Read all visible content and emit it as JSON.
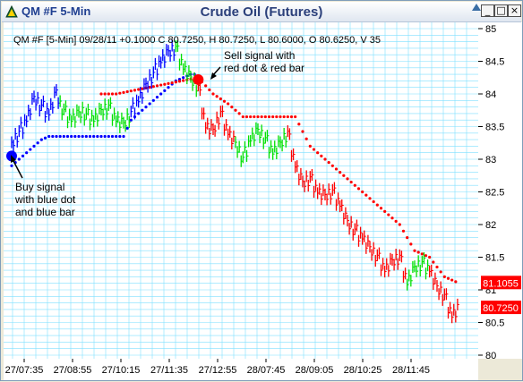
{
  "window": {
    "title": "QM #F 5-Min",
    "minimize_symbol": "_",
    "maximize_symbol": "□",
    "close_symbol": "×"
  },
  "chart_data": {
    "type": "bar",
    "title": "Crude Oil (Futures)",
    "info_line": "QM #F [5-Min] 09/28/11  +0.1000 C 80.7250, H 80.7250, L 80.6000, O 80.6250, V 35",
    "x_tick_labels": [
      "27/07:35",
      "27/08:55",
      "27/10:15",
      "27/11:35",
      "27/12:55",
      "28/07:45",
      "28/09:05",
      "28/10:25",
      "28/11:45"
    ],
    "y_ticks": [
      80,
      80.5,
      81,
      81.5,
      82,
      82.5,
      83,
      83.5,
      84,
      84.5,
      85
    ],
    "y_tick_labels": [
      "80",
      "80.5",
      "81",
      "81.5",
      "82",
      "82.5",
      "83",
      "83.5",
      "84",
      "84.5",
      "85"
    ],
    "ylim": [
      80,
      85.1
    ],
    "grid": true,
    "price_markers": [
      {
        "label": "81.1055",
        "value": 81.1055,
        "color": "#ff0000"
      },
      {
        "label": "80.7250",
        "value": 80.725,
        "color": "#ff0000"
      }
    ],
    "annotations": [
      {
        "id": "buy",
        "lines": [
          "Buy signal",
          "with blue dot",
          "and blue bar"
        ]
      },
      {
        "id": "sell",
        "lines": [
          "Sell signal with",
          "red dot & red bar"
        ]
      }
    ],
    "colors": {
      "blue": "#0000ff",
      "green": "#00e000",
      "red": "#ff0000",
      "grid": "#7fdfff",
      "background": "#ffffff"
    },
    "bar_segments": [
      {
        "color": "blue",
        "points": [
          [
            0,
            83.2
          ],
          [
            2,
            83.4
          ],
          [
            4,
            83.6
          ],
          [
            6,
            83.9
          ],
          [
            8,
            83.8
          ],
          [
            10,
            83.7
          ],
          [
            12,
            84.0
          ],
          [
            13,
            83.8
          ]
        ]
      },
      {
        "color": "green",
        "points": [
          [
            13,
            83.8
          ],
          [
            16,
            83.6
          ],
          [
            19,
            83.7
          ],
          [
            22,
            83.6
          ],
          [
            24,
            83.7
          ],
          [
            26,
            83.8
          ],
          [
            28,
            83.6
          ],
          [
            30,
            83.5
          ],
          [
            32,
            83.7
          ]
        ]
      },
      {
        "color": "blue",
        "points": [
          [
            32,
            83.7
          ],
          [
            34,
            83.9
          ],
          [
            36,
            84.1
          ],
          [
            38,
            84.3
          ],
          [
            40,
            84.5
          ],
          [
            42,
            84.6
          ],
          [
            44,
            84.7
          ]
        ]
      },
      {
        "color": "green",
        "points": [
          [
            44,
            84.7
          ],
          [
            46,
            84.4
          ],
          [
            48,
            84.2
          ],
          [
            50,
            84.1
          ]
        ]
      },
      {
        "color": "red",
        "points": [
          [
            50,
            84.1
          ],
          [
            52,
            83.5
          ],
          [
            54,
            83.4
          ],
          [
            56,
            83.7
          ],
          [
            58,
            83.4
          ],
          [
            60,
            83.2
          ]
        ]
      },
      {
        "color": "green",
        "points": [
          [
            60,
            83.2
          ],
          [
            62,
            83.0
          ],
          [
            64,
            83.3
          ],
          [
            66,
            83.4
          ],
          [
            68,
            83.3
          ],
          [
            70,
            83.1
          ],
          [
            72,
            83.2
          ],
          [
            74,
            83.4
          ]
        ]
      },
      {
        "color": "red",
        "points": [
          [
            74,
            83.4
          ],
          [
            76,
            82.9
          ],
          [
            78,
            82.6
          ],
          [
            80,
            82.7
          ],
          [
            82,
            82.5
          ],
          [
            84,
            82.4
          ],
          [
            86,
            82.5
          ],
          [
            88,
            82.3
          ],
          [
            90,
            82.0
          ],
          [
            92,
            81.9
          ],
          [
            94,
            81.8
          ],
          [
            96,
            81.6
          ],
          [
            98,
            81.5
          ],
          [
            100,
            81.3
          ],
          [
            102,
            81.4
          ],
          [
            104,
            81.5
          ],
          [
            106,
            81.1
          ]
        ]
      },
      {
        "color": "green",
        "points": [
          [
            106,
            81.1
          ],
          [
            108,
            81.3
          ],
          [
            110,
            81.4
          ],
          [
            112,
            81.3
          ]
        ]
      },
      {
        "color": "red",
        "points": [
          [
            112,
            81.3
          ],
          [
            114,
            81.0
          ],
          [
            116,
            80.9
          ],
          [
            118,
            80.6
          ],
          [
            120,
            80.7
          ]
        ]
      }
    ],
    "stop_segments": [
      {
        "color": "blue",
        "points": [
          [
            0,
            82.9
          ],
          [
            2,
            83.0
          ],
          [
            4,
            83.1
          ],
          [
            6,
            83.2
          ],
          [
            8,
            83.3
          ],
          [
            10,
            83.35
          ],
          [
            20,
            83.35
          ],
          [
            30,
            83.35
          ],
          [
            32,
            83.6
          ],
          [
            36,
            83.8
          ],
          [
            40,
            84.0
          ],
          [
            44,
            84.2
          ],
          [
            48,
            84.3
          ],
          [
            50,
            84.3
          ]
        ]
      },
      {
        "color": "red",
        "points": [
          [
            24,
            84.0
          ],
          [
            28,
            84.0
          ],
          [
            50,
            84.25
          ],
          [
            54,
            84.0
          ],
          [
            58,
            83.85
          ],
          [
            62,
            83.65
          ],
          [
            66,
            83.65
          ],
          [
            76,
            83.65
          ],
          [
            80,
            83.2
          ],
          [
            84,
            83.0
          ],
          [
            88,
            82.8
          ],
          [
            92,
            82.6
          ],
          [
            96,
            82.4
          ],
          [
            100,
            82.2
          ],
          [
            104,
            82.0
          ],
          [
            108,
            81.6
          ],
          [
            112,
            81.5
          ],
          [
            116,
            81.2
          ],
          [
            120,
            81.1
          ]
        ]
      }
    ],
    "signals": [
      {
        "type": "buy",
        "index": 0,
        "value": 83.05,
        "color": "blue"
      },
      {
        "type": "sell",
        "index": 50,
        "value": 84.22,
        "color": "red"
      }
    ]
  }
}
